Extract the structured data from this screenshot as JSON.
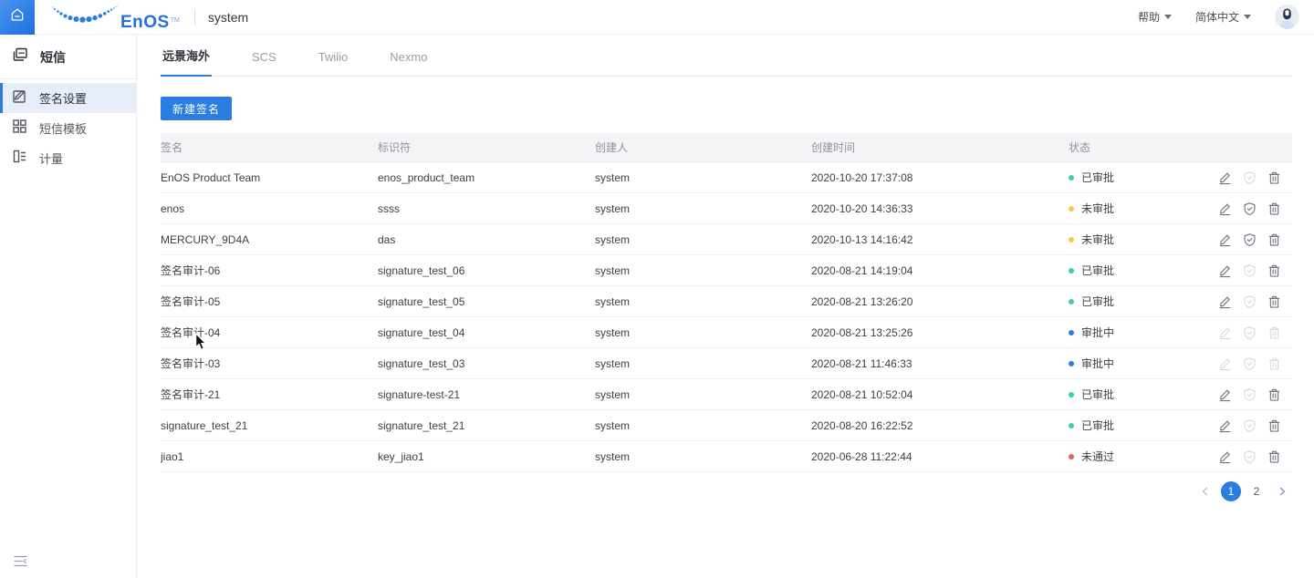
{
  "colors": {
    "primary": "#2b7de0",
    "approved": "#3ecfa0",
    "pending": "#f6c844",
    "in_review": "#2b7de0",
    "rejected": "#ee5c5c"
  },
  "header": {
    "product": "system",
    "help_label": "帮助",
    "language_label": "简体中文",
    "brand": "EnOS",
    "brand_tm": "TM"
  },
  "sidebar": {
    "title": "短信",
    "items": [
      {
        "label": "签名设置",
        "icon": "signature-settings-icon",
        "active": true
      },
      {
        "label": "短信模板",
        "icon": "sms-template-icon",
        "active": false
      },
      {
        "label": "计量",
        "icon": "metering-icon",
        "active": false
      }
    ]
  },
  "tabs": [
    {
      "label": "远景海外",
      "active": true
    },
    {
      "label": "SCS",
      "active": false
    },
    {
      "label": "Twilio",
      "active": false
    },
    {
      "label": "Nexmo",
      "active": false
    }
  ],
  "toolbar": {
    "new_signature_label": "新建签名"
  },
  "table": {
    "columns": [
      "签名",
      "标识符",
      "创建人",
      "创建时间",
      "状态"
    ],
    "rows": [
      {
        "name": "EnOS Product Team",
        "key": "enos_product_team",
        "creator": "system",
        "created": "2020-10-20 17:37:08",
        "status": "已审批",
        "status_color": "green",
        "actions": {
          "edit": true,
          "audit": false,
          "delete": true
        }
      },
      {
        "name": "enos",
        "key": "ssss",
        "creator": "system",
        "created": "2020-10-20 14:36:33",
        "status": "未审批",
        "status_color": "yellow",
        "actions": {
          "edit": true,
          "audit": true,
          "delete": true
        }
      },
      {
        "name": "MERCURY_9D4A",
        "key": "das",
        "creator": "system",
        "created": "2020-10-13 14:16:42",
        "status": "未审批",
        "status_color": "yellow",
        "actions": {
          "edit": true,
          "audit": true,
          "delete": true
        }
      },
      {
        "name": "签名审计-06",
        "key": "signature_test_06",
        "creator": "system",
        "created": "2020-08-21 14:19:04",
        "status": "已审批",
        "status_color": "green",
        "actions": {
          "edit": true,
          "audit": false,
          "delete": true
        }
      },
      {
        "name": "签名审计-05",
        "key": "signature_test_05",
        "creator": "system",
        "created": "2020-08-21 13:26:20",
        "status": "已审批",
        "status_color": "green",
        "actions": {
          "edit": true,
          "audit": false,
          "delete": true
        }
      },
      {
        "name": "签名审计-04",
        "key": "signature_test_04",
        "creator": "system",
        "created": "2020-08-21 13:25:26",
        "status": "审批中",
        "status_color": "blue",
        "actions": {
          "edit": false,
          "audit": false,
          "delete": false
        }
      },
      {
        "name": "签名审计-03",
        "key": "signature_test_03",
        "creator": "system",
        "created": "2020-08-21 11:46:33",
        "status": "审批中",
        "status_color": "blue",
        "actions": {
          "edit": false,
          "audit": false,
          "delete": false
        }
      },
      {
        "name": "签名审计-21",
        "key": "signature-test-21",
        "creator": "system",
        "created": "2020-08-21 10:52:04",
        "status": "已审批",
        "status_color": "green",
        "actions": {
          "edit": true,
          "audit": false,
          "delete": true
        }
      },
      {
        "name": "signature_test_21",
        "key": "signature_test_21",
        "creator": "system",
        "created": "2020-08-20 16:22:52",
        "status": "已审批",
        "status_color": "green",
        "actions": {
          "edit": true,
          "audit": false,
          "delete": true
        }
      },
      {
        "name": "jiao1",
        "key": "key_jiao1",
        "creator": "system",
        "created": "2020-06-28 11:22:44",
        "status": "未通过",
        "status_color": "red",
        "actions": {
          "edit": true,
          "audit": false,
          "delete": true
        }
      }
    ]
  },
  "pagination": {
    "pages": [
      "1",
      "2"
    ],
    "current": "1"
  }
}
